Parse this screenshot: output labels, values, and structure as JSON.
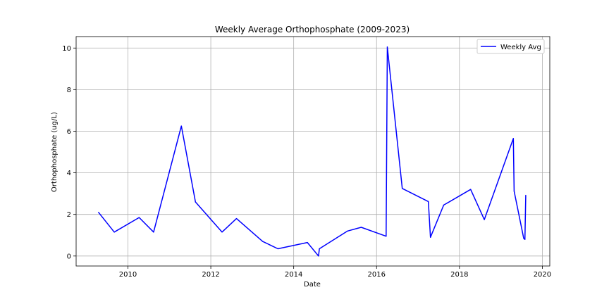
{
  "chart_data": {
    "type": "line",
    "title": "Weekly Average Orthophosphate (2009-2023)",
    "xlabel": "Date",
    "ylabel": "Orthophosphate (ug/L)",
    "xlim": [
      2008.75,
      2020.18
    ],
    "ylim": [
      -0.48,
      10.55
    ],
    "xticks": [
      "2010",
      "2012",
      "2014",
      "2016",
      "2018",
      "2020"
    ],
    "yticks": [
      "0",
      "2",
      "4",
      "6",
      "8",
      "10"
    ],
    "grid": true,
    "legend_position": "top-right",
    "series": [
      {
        "name": "Weekly Avg",
        "color": "#0000ff",
        "x": [
          2009.29,
          2009.67,
          2010.27,
          2010.62,
          2011.29,
          2011.63,
          2012.27,
          2012.62,
          2013.25,
          2013.62,
          2014.33,
          2014.6,
          2014.62,
          2015.3,
          2015.63,
          2016.23,
          2016.26,
          2016.62,
          2017.25,
          2017.3,
          2017.62,
          2018.27,
          2018.6,
          2019.3,
          2019.32,
          2019.55,
          2019.58,
          2019.6
        ],
        "y": [
          2.1,
          1.15,
          1.85,
          1.15,
          6.25,
          2.6,
          1.15,
          1.8,
          0.7,
          0.35,
          0.65,
          0.0,
          0.35,
          1.2,
          1.38,
          0.95,
          10.05,
          3.25,
          2.62,
          0.9,
          2.45,
          3.2,
          1.75,
          5.65,
          3.12,
          0.85,
          0.8,
          2.92
        ]
      }
    ]
  }
}
